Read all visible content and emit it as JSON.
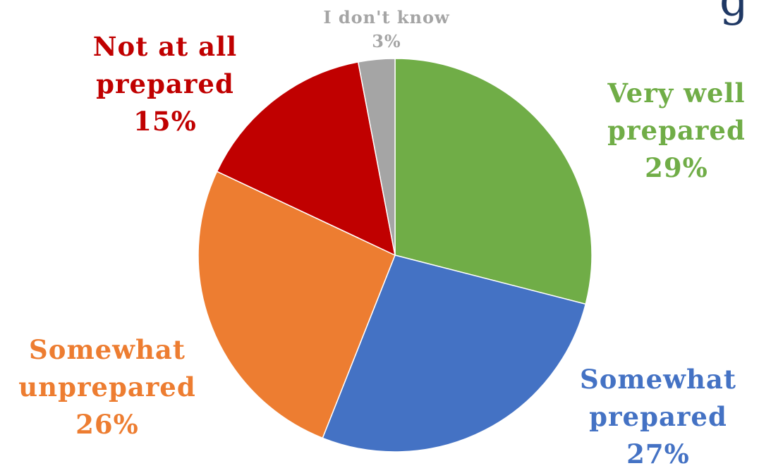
{
  "chart_data": {
    "type": "pie",
    "title": "",
    "slices": [
      {
        "label": "Very well prepared",
        "label_lines": [
          "Very well",
          "prepared"
        ],
        "value": 29,
        "value_label": "29%",
        "color": "#70ad47"
      },
      {
        "label": "Somewhat prepared",
        "label_lines": [
          "Somewhat",
          "prepared"
        ],
        "value": 27,
        "value_label": "27%",
        "color": "#4472c4"
      },
      {
        "label": "Somewhat unprepared",
        "label_lines": [
          "Somewhat",
          "unprepared"
        ],
        "value": 26,
        "value_label": "26%",
        "color": "#ed7d31"
      },
      {
        "label": "Not at all prepared",
        "label_lines": [
          "Not at all",
          "prepared"
        ],
        "value": 15,
        "value_label": "15%",
        "color": "#c00000"
      },
      {
        "label": "I don't know",
        "label_lines": [
          "I don't know"
        ],
        "value": 3,
        "value_label": "3%",
        "color": "#a5a5a5"
      }
    ],
    "start": "12 o'clock",
    "direction": "clockwise"
  },
  "corner_text": "g"
}
